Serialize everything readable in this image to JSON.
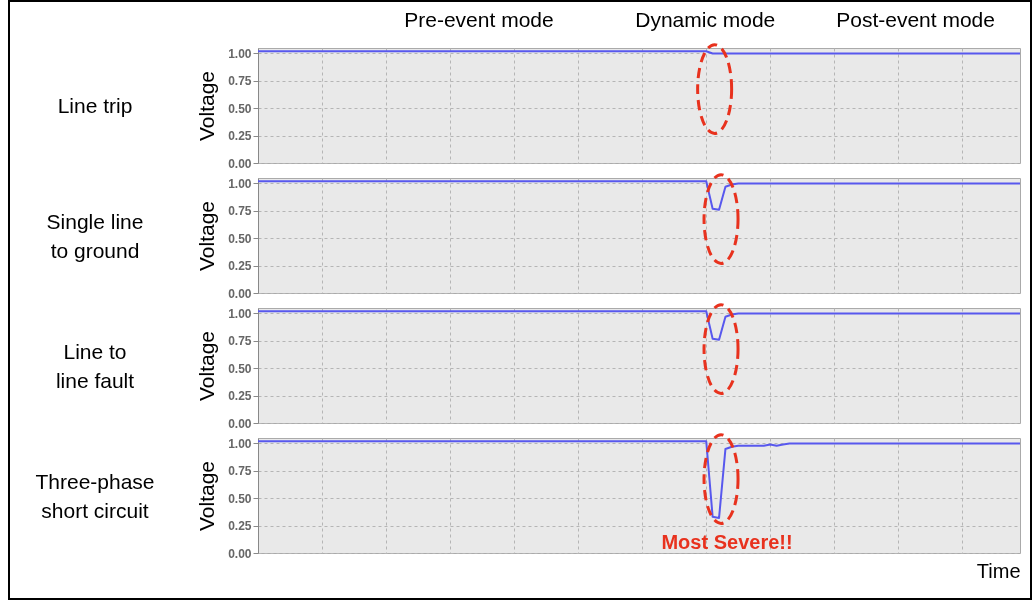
{
  "chart_data": [
    {
      "type": "line",
      "title": "Line trip",
      "ylabel": "Voltage",
      "annotations": [
        "Pre-event mode",
        "Dynamic mode",
        "Post-event mode"
      ],
      "categories": [
        null,
        null,
        null,
        null,
        null,
        null,
        null,
        null,
        null,
        null,
        null,
        null,
        null,
        null,
        null,
        null,
        null,
        null,
        null,
        null,
        null,
        null,
        null,
        null,
        null,
        null,
        null,
        null,
        null,
        null,
        null,
        null,
        null,
        null,
        null,
        null,
        null,
        null,
        null,
        null,
        null,
        null,
        null,
        null,
        null,
        null,
        null,
        null,
        null,
        null,
        null,
        null,
        null,
        null,
        null,
        null,
        null,
        null,
        null,
        null,
        null,
        null,
        null,
        null,
        null,
        null,
        null,
        null,
        null,
        null,
        null,
        null,
        null,
        null,
        null,
        null,
        null,
        null,
        null,
        null,
        null,
        null,
        null,
        null,
        null,
        null,
        null,
        null,
        null,
        null,
        null,
        null,
        null,
        null,
        null,
        null,
        null,
        null,
        null,
        null,
        null,
        null,
        null,
        null,
        null,
        null,
        null,
        null,
        null,
        null,
        null,
        null,
        null,
        null,
        null,
        null,
        null,
        null,
        null,
        null
      ],
      "values": [
        1.02,
        1.02,
        1.02,
        1.02,
        1.02,
        1.02,
        1.02,
        1.02,
        1.02,
        1.02,
        1.02,
        1.02,
        1.02,
        1.02,
        1.02,
        1.02,
        1.02,
        1.02,
        1.02,
        1.02,
        1.02,
        1.02,
        1.02,
        1.02,
        1.02,
        1.02,
        1.02,
        1.02,
        1.02,
        1.02,
        1.02,
        1.02,
        1.02,
        1.02,
        1.02,
        1.02,
        1.02,
        1.02,
        1.02,
        1.02,
        1.02,
        1.02,
        1.02,
        1.02,
        1.02,
        1.02,
        1.02,
        1.02,
        1.02,
        1.02,
        1.02,
        1.02,
        1.02,
        1.02,
        1.02,
        1.02,
        1.02,
        1.02,
        1.02,
        1.02,
        1.02,
        1.02,
        1.02,
        1.02,
        1.02,
        1.02,
        1.02,
        1.02,
        1.02,
        1.02,
        1.02,
        1.0,
        1.0,
        1.0,
        1.0,
        1.0,
        1.0,
        1.0,
        1.0,
        1.0,
        1.0,
        1.0,
        1.0,
        1.0,
        1.0,
        1.0,
        1.0,
        1.0,
        1.0,
        1.0,
        1.0,
        1.0,
        1.0,
        1.0,
        1.0,
        1.0,
        1.0,
        1.0,
        1.0,
        1.0,
        1.0,
        1.0,
        1.0,
        1.0,
        1.0,
        1.0,
        1.0,
        1.0,
        1.0,
        1.0,
        1.0,
        1.0,
        1.0,
        1.0,
        1.0,
        1.0,
        1.0,
        1.0,
        1.0,
        1.0
      ],
      "color": "#5858ee",
      "ylim": [
        0,
        1.05
      ],
      "yticks": [
        {
          "value": 0,
          "label": "0.00"
        },
        {
          "value": 0.25,
          "label": "0.25"
        },
        {
          "value": 0.5,
          "label": "0.50"
        },
        {
          "value": 0.75,
          "label": "0.75"
        },
        {
          "value": 1,
          "label": "1.00"
        }
      ],
      "grid": true,
      "tick_labels": "y"
    },
    {
      "type": "line",
      "title": "Single line to ground",
      "ylabel": "Voltage",
      "categories": [
        null,
        null,
        null,
        null,
        null,
        null,
        null,
        null,
        null,
        null,
        null,
        null,
        null,
        null,
        null,
        null,
        null,
        null,
        null,
        null,
        null,
        null,
        null,
        null,
        null,
        null,
        null,
        null,
        null,
        null,
        null,
        null,
        null,
        null,
        null,
        null,
        null,
        null,
        null,
        null,
        null,
        null,
        null,
        null,
        null,
        null,
        null,
        null,
        null,
        null,
        null,
        null,
        null,
        null,
        null,
        null,
        null,
        null,
        null,
        null,
        null,
        null,
        null,
        null,
        null,
        null,
        null,
        null,
        null,
        null,
        null,
        null,
        null,
        null,
        null,
        null,
        null,
        null,
        null,
        null,
        null,
        null,
        null,
        null,
        null,
        null,
        null,
        null,
        null,
        null,
        null,
        null,
        null,
        null,
        null,
        null,
        null,
        null,
        null,
        null,
        null,
        null,
        null,
        null,
        null,
        null,
        null,
        null,
        null,
        null,
        null,
        null,
        null,
        null,
        null,
        null,
        null,
        null,
        null,
        null
      ],
      "values": [
        1.02,
        1.02,
        1.02,
        1.02,
        1.02,
        1.02,
        1.02,
        1.02,
        1.02,
        1.02,
        1.02,
        1.02,
        1.02,
        1.02,
        1.02,
        1.02,
        1.02,
        1.02,
        1.02,
        1.02,
        1.02,
        1.02,
        1.02,
        1.02,
        1.02,
        1.02,
        1.02,
        1.02,
        1.02,
        1.02,
        1.02,
        1.02,
        1.02,
        1.02,
        1.02,
        1.02,
        1.02,
        1.02,
        1.02,
        1.02,
        1.02,
        1.02,
        1.02,
        1.02,
        1.02,
        1.02,
        1.02,
        1.02,
        1.02,
        1.02,
        1.02,
        1.02,
        1.02,
        1.02,
        1.02,
        1.02,
        1.02,
        1.02,
        1.02,
        1.02,
        1.02,
        1.02,
        1.02,
        1.02,
        1.02,
        1.02,
        1.02,
        1.02,
        1.02,
        1.02,
        1.02,
        0.77,
        0.76,
        0.97,
        0.99,
        1.0,
        1.0,
        1.0,
        1.0,
        1.0,
        1.0,
        1.0,
        1.0,
        1.0,
        1.0,
        1.0,
        1.0,
        1.0,
        1.0,
        1.0,
        1.0,
        1.0,
        1.0,
        1.0,
        1.0,
        1.0,
        1.0,
        1.0,
        1.0,
        1.0,
        1.0,
        1.0,
        1.0,
        1.0,
        1.0,
        1.0,
        1.0,
        1.0,
        1.0,
        1.0,
        1.0,
        1.0,
        1.0,
        1.0,
        1.0,
        1.0,
        1.0,
        1.0,
        1.0,
        1.0
      ],
      "color": "#5858ee",
      "ylim": [
        0,
        1.05
      ],
      "yticks": [
        {
          "value": 0,
          "label": "0.00"
        },
        {
          "value": 0.25,
          "label": "0.25"
        },
        {
          "value": 0.5,
          "label": "0.50"
        },
        {
          "value": 0.75,
          "label": "0.75"
        },
        {
          "value": 1,
          "label": "1.00"
        }
      ],
      "grid": true,
      "tick_labels": "y"
    },
    {
      "type": "line",
      "title": "Line to line fault",
      "ylabel": "Voltage",
      "categories": [
        null,
        null,
        null,
        null,
        null,
        null,
        null,
        null,
        null,
        null,
        null,
        null,
        null,
        null,
        null,
        null,
        null,
        null,
        null,
        null,
        null,
        null,
        null,
        null,
        null,
        null,
        null,
        null,
        null,
        null,
        null,
        null,
        null,
        null,
        null,
        null,
        null,
        null,
        null,
        null,
        null,
        null,
        null,
        null,
        null,
        null,
        null,
        null,
        null,
        null,
        null,
        null,
        null,
        null,
        null,
        null,
        null,
        null,
        null,
        null,
        null,
        null,
        null,
        null,
        null,
        null,
        null,
        null,
        null,
        null,
        null,
        null,
        null,
        null,
        null,
        null,
        null,
        null,
        null,
        null,
        null,
        null,
        null,
        null,
        null,
        null,
        null,
        null,
        null,
        null,
        null,
        null,
        null,
        null,
        null,
        null,
        null,
        null,
        null,
        null,
        null,
        null,
        null,
        null,
        null,
        null,
        null,
        null,
        null,
        null,
        null,
        null,
        null,
        null,
        null,
        null,
        null,
        null,
        null,
        null
      ],
      "values": [
        1.02,
        1.02,
        1.02,
        1.02,
        1.02,
        1.02,
        1.02,
        1.02,
        1.02,
        1.02,
        1.02,
        1.02,
        1.02,
        1.02,
        1.02,
        1.02,
        1.02,
        1.02,
        1.02,
        1.02,
        1.02,
        1.02,
        1.02,
        1.02,
        1.02,
        1.02,
        1.02,
        1.02,
        1.02,
        1.02,
        1.02,
        1.02,
        1.02,
        1.02,
        1.02,
        1.02,
        1.02,
        1.02,
        1.02,
        1.02,
        1.02,
        1.02,
        1.02,
        1.02,
        1.02,
        1.02,
        1.02,
        1.02,
        1.02,
        1.02,
        1.02,
        1.02,
        1.02,
        1.02,
        1.02,
        1.02,
        1.02,
        1.02,
        1.02,
        1.02,
        1.02,
        1.02,
        1.02,
        1.02,
        1.02,
        1.02,
        1.02,
        1.02,
        1.02,
        1.02,
        1.02,
        0.77,
        0.76,
        0.97,
        0.99,
        1.0,
        1.0,
        1.0,
        1.0,
        1.0,
        1.0,
        1.0,
        1.0,
        1.0,
        1.0,
        1.0,
        1.0,
        1.0,
        1.0,
        1.0,
        1.0,
        1.0,
        1.0,
        1.0,
        1.0,
        1.0,
        1.0,
        1.0,
        1.0,
        1.0,
        1.0,
        1.0,
        1.0,
        1.0,
        1.0,
        1.0,
        1.0,
        1.0,
        1.0,
        1.0,
        1.0,
        1.0,
        1.0,
        1.0,
        1.0,
        1.0,
        1.0,
        1.0,
        1.0,
        1.0
      ],
      "color": "#5858ee",
      "ylim": [
        0,
        1.05
      ],
      "yticks": [
        {
          "value": 0,
          "label": "0.00"
        },
        {
          "value": 0.25,
          "label": "0.25"
        },
        {
          "value": 0.5,
          "label": "0.50"
        },
        {
          "value": 0.75,
          "label": "0.75"
        },
        {
          "value": 1,
          "label": "1.00"
        }
      ],
      "grid": true,
      "tick_labels": "y"
    },
    {
      "type": "line",
      "title": "Three-phase short circuit",
      "ylabel": "Voltage",
      "xlabel": "Time",
      "annotations": [
        "Most Severe!!"
      ],
      "categories": [
        null,
        null,
        null,
        null,
        null,
        null,
        null,
        null,
        null,
        null,
        null,
        null,
        null,
        null,
        null,
        null,
        null,
        null,
        null,
        null,
        null,
        null,
        null,
        null,
        null,
        null,
        null,
        null,
        null,
        null,
        null,
        null,
        null,
        null,
        null,
        null,
        null,
        null,
        null,
        null,
        null,
        null,
        null,
        null,
        null,
        null,
        null,
        null,
        null,
        null,
        null,
        null,
        null,
        null,
        null,
        null,
        null,
        null,
        null,
        null,
        null,
        null,
        null,
        null,
        null,
        null,
        null,
        null,
        null,
        null,
        null,
        null,
        null,
        null,
        null,
        null,
        null,
        null,
        null,
        null,
        null,
        null,
        null,
        null,
        null,
        null,
        null,
        null,
        null,
        null,
        null,
        null,
        null,
        null,
        null,
        null,
        null,
        null,
        null,
        null,
        null,
        null,
        null,
        null,
        null,
        null,
        null,
        null,
        null,
        null,
        null,
        null,
        null,
        null,
        null,
        null,
        null,
        null,
        null,
        null
      ],
      "values": [
        1.02,
        1.02,
        1.02,
        1.02,
        1.02,
        1.02,
        1.02,
        1.02,
        1.02,
        1.02,
        1.02,
        1.02,
        1.02,
        1.02,
        1.02,
        1.02,
        1.02,
        1.02,
        1.02,
        1.02,
        1.02,
        1.02,
        1.02,
        1.02,
        1.02,
        1.02,
        1.02,
        1.02,
        1.02,
        1.02,
        1.02,
        1.02,
        1.02,
        1.02,
        1.02,
        1.02,
        1.02,
        1.02,
        1.02,
        1.02,
        1.02,
        1.02,
        1.02,
        1.02,
        1.02,
        1.02,
        1.02,
        1.02,
        1.02,
        1.02,
        1.02,
        1.02,
        1.02,
        1.02,
        1.02,
        1.02,
        1.02,
        1.02,
        1.02,
        1.02,
        1.02,
        1.02,
        1.02,
        1.02,
        1.02,
        1.02,
        1.02,
        1.02,
        1.02,
        1.02,
        1.02,
        0.33,
        0.32,
        0.95,
        0.97,
        0.98,
        0.98,
        0.98,
        0.98,
        0.98,
        0.99,
        0.98,
        0.99,
        1.0,
        1.0,
        1.0,
        1.0,
        1.0,
        1.0,
        1.0,
        1.0,
        1.0,
        1.0,
        1.0,
        1.0,
        1.0,
        1.0,
        1.0,
        1.0,
        1.0,
        1.0,
        1.0,
        1.0,
        1.0,
        1.0,
        1.0,
        1.0,
        1.0,
        1.0,
        1.0,
        1.0,
        1.0,
        1.0,
        1.0,
        1.0,
        1.0,
        1.0,
        1.0,
        1.0,
        1.0
      ],
      "color": "#5858ee",
      "ylim": [
        0,
        1.05
      ],
      "yticks": [
        {
          "value": 0,
          "label": "0.00"
        },
        {
          "value": 0.25,
          "label": "0.25"
        },
        {
          "value": 0.5,
          "label": "0.50"
        },
        {
          "value": 0.75,
          "label": "0.75"
        },
        {
          "value": 1,
          "label": "1.00"
        }
      ],
      "grid": true,
      "tick_labels": "y"
    }
  ]
}
